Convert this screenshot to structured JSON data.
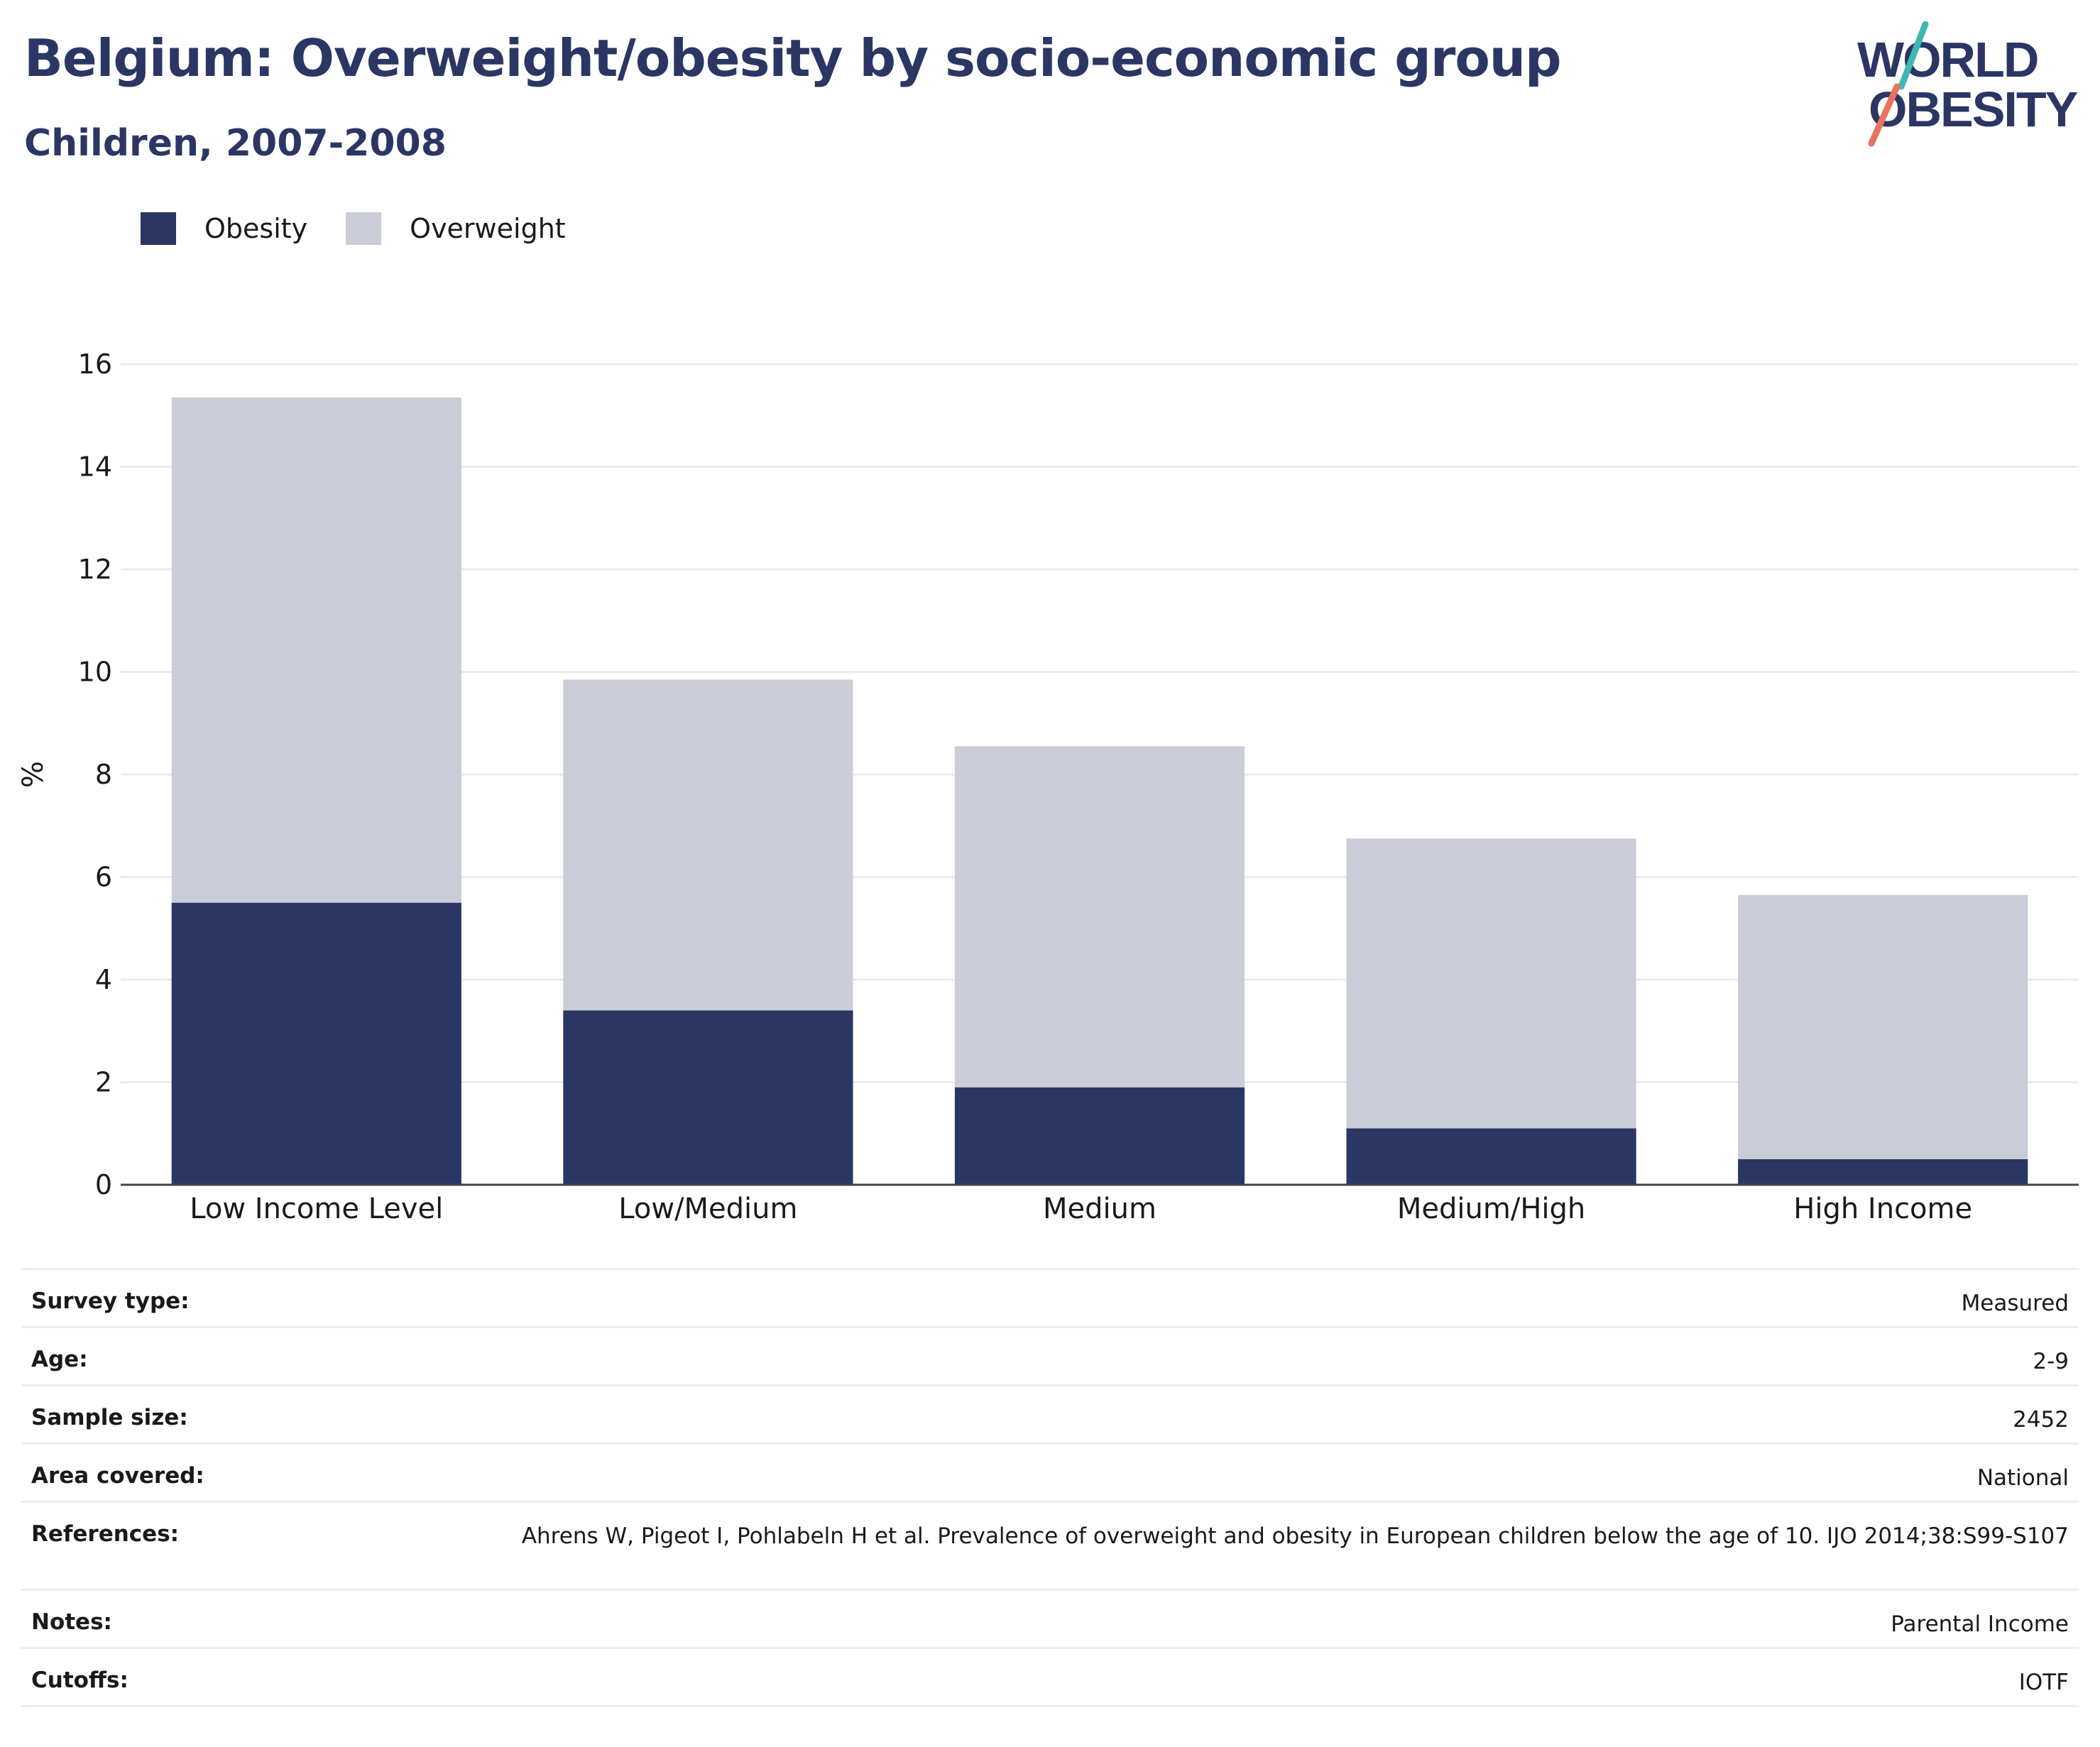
{
  "header": {
    "title": "Belgium: Overweight/obesity by socio-economic group",
    "subtitle": "Children, 2007-2008"
  },
  "logo": {
    "line1": "WORLD",
    "line2": "OBESITY",
    "colors": {
      "text": "#2b3664",
      "slash_teal": "#3fb8b4",
      "slash_coral": "#e8735f"
    }
  },
  "legend": {
    "items": [
      {
        "label": "Obesity",
        "color": "#2b3664"
      },
      {
        "label": "Overweight",
        "color": "#caccd8"
      }
    ]
  },
  "chart_data": {
    "type": "bar",
    "stacked": true,
    "categories": [
      "Low Income Level",
      "Low/Medium",
      "Medium",
      "Medium/High",
      "High Income"
    ],
    "series": [
      {
        "name": "Obesity",
        "color": "#2b3664",
        "values": [
          5.5,
          3.4,
          1.9,
          1.1,
          0.5
        ]
      },
      {
        "name": "Overweight",
        "color": "#caccd8",
        "values": [
          9.85,
          6.45,
          6.65,
          5.65,
          5.15
        ]
      }
    ],
    "ylabel": "%",
    "ylim": [
      0,
      16
    ],
    "yticks": [
      0,
      2,
      4,
      6,
      8,
      10,
      12,
      14,
      16
    ],
    "grid": true,
    "legend_position": "top-left"
  },
  "info": [
    {
      "key": "Survey type:",
      "value": "Measured"
    },
    {
      "key": "Age:",
      "value": "2-9"
    },
    {
      "key": "Sample size:",
      "value": "2452"
    },
    {
      "key": "Area covered:",
      "value": "National"
    },
    {
      "key": "References:",
      "value": "Ahrens W, Pigeot I, Pohlabeln H et al. Prevalence of overweight and obesity in European children below the age of 10. IJO 2014;38:S99-S107"
    },
    {
      "key": "Notes:",
      "value": "Parental Income"
    },
    {
      "key": "Cutoffs:",
      "value": "IOTF"
    }
  ]
}
